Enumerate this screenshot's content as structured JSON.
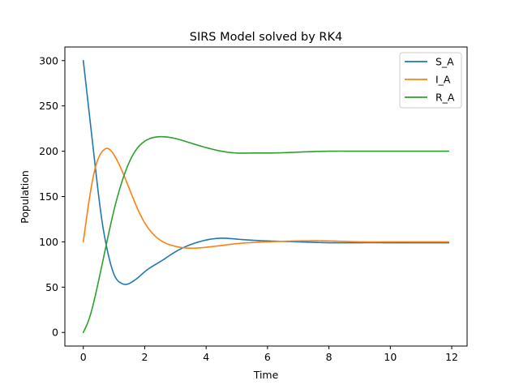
{
  "chart_data": {
    "type": "line",
    "title": "SIRS Model solved by RK4",
    "xlabel": "Time",
    "ylabel": "Population",
    "xlim": [
      -0.6,
      12.5
    ],
    "ylim": [
      -15,
      315
    ],
    "xticks": [
      0,
      2,
      4,
      6,
      8,
      10,
      12
    ],
    "yticks": [
      0,
      50,
      100,
      150,
      200,
      250,
      300
    ],
    "grid": false,
    "legend_position": "top-right",
    "series": [
      {
        "name": "S_A",
        "color": "#1f77b4",
        "x": [
          0,
          0.2,
          0.4,
          0.6,
          0.8,
          1.0,
          1.2,
          1.4,
          1.6,
          1.8,
          2.0,
          2.5,
          3.0,
          3.5,
          4.0,
          4.5,
          5.0,
          6.0,
          7.0,
          8.0,
          9.0,
          10.0,
          11.0,
          11.9
        ],
        "values": [
          300,
          240,
          180,
          125,
          88,
          64,
          55,
          53,
          56,
          61,
          67,
          78,
          89,
          97,
          102,
          104,
          103,
          101,
          100,
          99,
          99,
          99,
          99,
          99
        ]
      },
      {
        "name": "I_A",
        "color": "#ff7f0e",
        "x": [
          0,
          0.2,
          0.4,
          0.6,
          0.8,
          1.0,
          1.2,
          1.4,
          1.6,
          1.8,
          2.0,
          2.5,
          3.0,
          3.5,
          4.0,
          4.5,
          5.0,
          6.0,
          7.0,
          8.0,
          9.0,
          10.0,
          11.0,
          11.9
        ],
        "values": [
          100,
          148,
          183,
          199,
          203,
          196,
          183,
          167,
          150,
          134,
          121,
          102,
          95,
          93,
          94,
          96,
          98,
          100,
          101,
          101,
          100,
          100,
          100,
          100
        ]
      },
      {
        "name": "R_A",
        "color": "#2ca02c",
        "x": [
          0,
          0.2,
          0.4,
          0.6,
          0.8,
          1.0,
          1.2,
          1.4,
          1.6,
          1.8,
          2.0,
          2.5,
          3.0,
          3.5,
          4.0,
          4.5,
          5.0,
          5.5,
          6.0,
          7.0,
          8.0,
          9.0,
          10.0,
          11.0,
          11.9
        ],
        "values": [
          0,
          16,
          42,
          73,
          105,
          135,
          160,
          180,
          195,
          205,
          211,
          216,
          214,
          209,
          204,
          200,
          198,
          198,
          198,
          199,
          200,
          200,
          200,
          200,
          200
        ]
      }
    ]
  }
}
